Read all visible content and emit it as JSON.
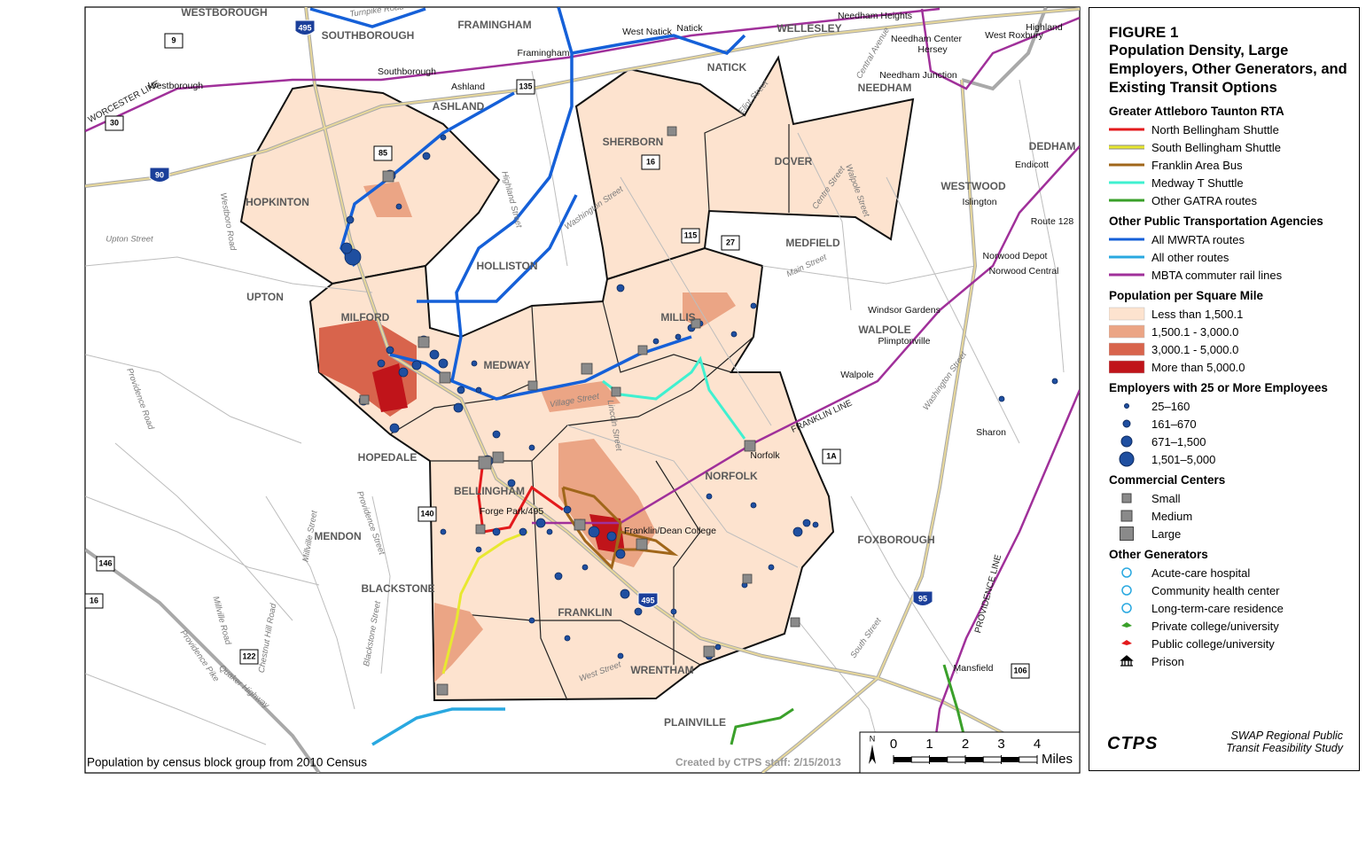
{
  "map": {
    "towns": [
      "WESTBOROUGH",
      "SOUTHBOROUGH",
      "FRAMINGHAM",
      "WELLESLEY",
      "NATICK",
      "ASHLAND",
      "SHERBORN",
      "DOVER",
      "NEEDHAM",
      "DEDHAM",
      "WESTWOOD",
      "HOPKINTON",
      "HOLLISTON",
      "MEDFIELD",
      "UPTON",
      "MILFORD",
      "MILLIS",
      "MEDWAY",
      "WALPOLE",
      "HOPEDALE",
      "BELLINGHAM",
      "NORFOLK",
      "MENDON",
      "BLACKSTONE",
      "FRANKLIN",
      "FOXBOROUGH",
      "WRENTHAM",
      "PLAINVILLE"
    ],
    "places": [
      "Westborough",
      "Southborough",
      "Ashland",
      "Framingham",
      "West Natick",
      "Natick",
      "Needham Heights",
      "Needham Center",
      "Hersey",
      "Needham Junction",
      "Highland",
      "West Roxbury",
      "Endicott",
      "Islington",
      "Route 128",
      "Norwood Depot",
      "Norwood Central",
      "Windsor Gardens",
      "Plimptonville",
      "Walpole",
      "Norfolk",
      "Sharon",
      "Mansfield",
      "Forge Park/495",
      "Franklin/Dean College"
    ],
    "streets": [
      "Turnpike Road",
      "Central Avenue",
      "Eliot Street",
      "Highland Street",
      "Washington Street",
      "Westboro Road",
      "Upton Street",
      "Providence Road",
      "Centre Street",
      "Walpole Street",
      "Main Street",
      "Village Street",
      "Lincoln Street",
      "Millville Street",
      "Providence Street",
      "Chestnut Hill Road",
      "Millville Road",
      "Blackstone Street",
      "Providence Pike",
      "Quaker Highway",
      "West Street",
      "South Street",
      "Washington Street"
    ],
    "rail_lines": [
      "WORCESTER LINE",
      "FRANKLIN LINE",
      "PROVIDENCE LINE"
    ],
    "route_shields": [
      "9",
      "495",
      "135",
      "30",
      "90",
      "85",
      "16",
      "115",
      "27",
      "140",
      "146",
      "16",
      "122",
      "1A",
      "95",
      "106",
      "495"
    ],
    "source_note": "Population by census block group from 2010 Census",
    "credit": "Created by CTPS staff: 2/15/2013",
    "scale": {
      "ticks": [
        0,
        1,
        2,
        3,
        4
      ],
      "unit": "Miles",
      "north": "N"
    }
  },
  "legend": {
    "figure": "FIGURE 1",
    "title": "Population Density, Large Employers, Other Generators, and Existing Transit Options",
    "sections": [
      {
        "heading": "Greater Attleboro Taunton RTA",
        "items": [
          "North Bellingham Shuttle",
          "South Bellingham Shuttle",
          "Franklin Area Bus",
          "Medway T Shuttle",
          "Other GATRA routes"
        ]
      },
      {
        "heading": "Other Public Transportation Agencies",
        "items": [
          "All MWRTA routes",
          "All other routes",
          "MBTA commuter rail lines"
        ]
      },
      {
        "heading": "Population per Square Mile",
        "items": [
          "Less than 1,500.1",
          "1,500.1 - 3,000.0",
          "3,000.1 - 5,000.0",
          "More than 5,000.0"
        ]
      },
      {
        "heading": "Employers with 25 or More Employees",
        "items": [
          "25–160",
          "161–670",
          "671–1,500",
          "1,501–5,000"
        ]
      },
      {
        "heading": "Commercial Centers",
        "items": [
          "Small",
          "Medium",
          "Large"
        ]
      },
      {
        "heading": "Other Generators",
        "items": [
          "Acute-care hospital",
          "Community health center",
          "Long-term-care residence",
          "Private college/university",
          "Public college/university",
          "Prison"
        ]
      }
    ]
  },
  "footer": {
    "logo": "CTPS",
    "study": "SWAP Regional Public Transit Feasibility Study"
  }
}
